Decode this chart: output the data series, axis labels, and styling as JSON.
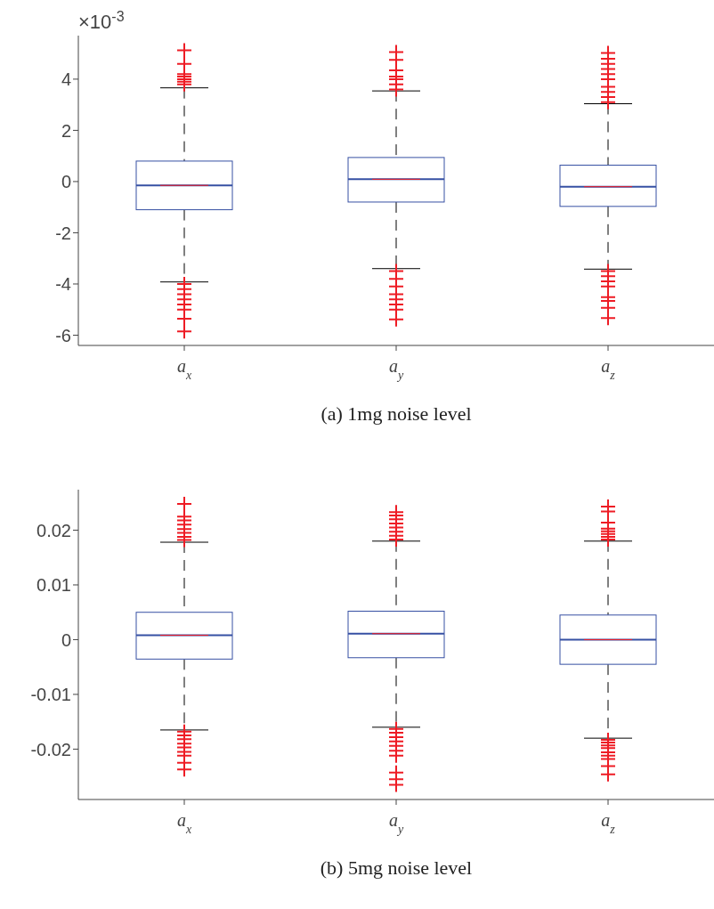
{
  "chart_data": [
    {
      "type": "box",
      "title": "(a) 1mg noise level",
      "annotations": [
        "×10$^{-3}$"
      ],
      "categories": [
        "a$_{x}$",
        "a$_{y}$",
        "a$_{z}$"
      ],
      "ylim": [
        -6.4,
        5.7
      ],
      "yticks": [
        -6,
        -4,
        -2,
        0,
        2,
        4
      ],
      "series": [
        {
          "color": "#3650a3",
          "boxes": [
            {
              "low": -3.92,
              "q1": -1.1,
              "median": -0.15,
              "q3": 0.8,
              "high": 3.66,
              "outliers": [
                3.8,
                3.9,
                4.0,
                4.1,
                4.2,
                4.6,
                5.13,
                -4.0,
                -4.2,
                -4.4,
                -4.6,
                -4.8,
                -5.0,
                -5.36,
                -5.85
              ]
            },
            {
              "low": -3.4,
              "q1": -0.8,
              "median": 0.09,
              "q3": 0.94,
              "high": 3.54,
              "outliers": [
                3.6,
                3.8,
                4.0,
                4.1,
                4.34,
                4.75,
                5.06,
                -3.5,
                -3.8,
                -4.1,
                -4.4,
                -4.6,
                -4.8,
                -5.0,
                -5.38
              ]
            },
            {
              "low": -3.42,
              "q1": -0.97,
              "median": -0.2,
              "q3": 0.64,
              "high": 3.04,
              "outliers": [
                3.1,
                3.3,
                3.5,
                3.7,
                4.0,
                4.2,
                4.4,
                4.6,
                4.8,
                5.02,
                -3.5,
                -3.7,
                -3.9,
                -4.1,
                -4.51,
                -4.66,
                -4.93,
                -5.33
              ]
            }
          ]
        }
      ]
    },
    {
      "type": "box",
      "title": "(b) 5mg noise level",
      "categories": [
        "a$_{x}$",
        "a$_{y}$",
        "a$_{z}$"
      ],
      "ylim": [
        -0.0292,
        0.0274
      ],
      "yticks": [
        -0.02,
        -0.01,
        0,
        0.01,
        0.02
      ],
      "series": [
        {
          "color": "#3650a3",
          "boxes": [
            {
              "low": -0.0165,
              "q1": -0.00355,
              "median": 0.0008,
              "q3": 0.005,
              "high": 0.0178,
              "outliers": [
                0.0182,
                0.0188,
                0.0195,
                0.0202,
                0.021,
                0.0218,
                0.0225,
                0.0248,
                -0.0168,
                -0.0175,
                -0.0182,
                -0.019,
                -0.0197,
                -0.0205,
                -0.0212,
                -0.0225,
                -0.0237
              ]
            },
            {
              "low": -0.016,
              "q1": -0.0033,
              "median": 0.0011,
              "q3": 0.0052,
              "high": 0.018,
              "outliers": [
                0.0183,
                0.019,
                0.0197,
                0.0205,
                0.0212,
                0.022,
                0.0227,
                0.0233,
                -0.0163,
                -0.017,
                -0.0178,
                -0.0186,
                -0.0194,
                -0.0203,
                -0.0212,
                -0.0243,
                -0.0255,
                -0.0265
              ]
            },
            {
              "low": -0.018,
              "q1": -0.0045,
              "median": 0,
              "q3": 0.0045,
              "high": 0.018,
              "outliers": [
                0.0183,
                0.0188,
                0.0193,
                0.0198,
                0.0203,
                0.0214,
                0.0234,
                0.0243,
                -0.0183,
                -0.0188,
                -0.0193,
                -0.0198,
                -0.0206,
                -0.0212,
                -0.0218,
                -0.0231,
                -0.0246
              ]
            }
          ]
        }
      ]
    }
  ]
}
